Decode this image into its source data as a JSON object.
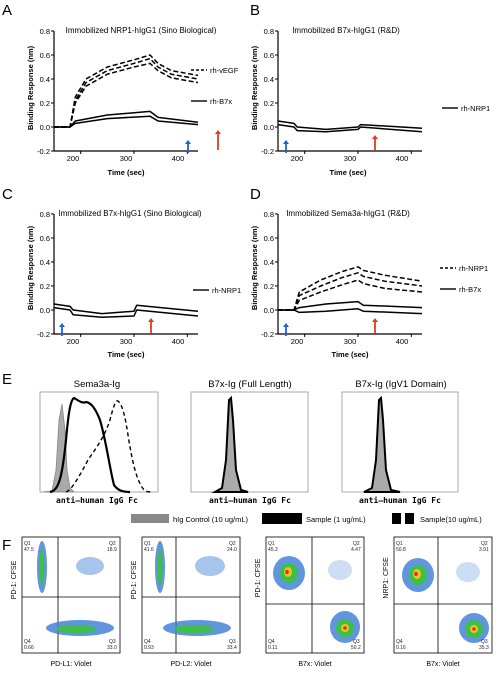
{
  "figure": {
    "panels": [
      {
        "letter": "A",
        "title": "Immobilized NRP1-hIgG1 (Sino Biological)",
        "ylabel": "Binding Response (nm)",
        "xlabel": "Time (sec)",
        "yticks": [
          "0.8",
          "0.6",
          "0.4",
          "0.2",
          "0.0",
          "-0.2"
        ],
        "xticks": [
          "200",
          "300",
          "400"
        ],
        "legend": [
          "rh-vEGF",
          "rh-B7x"
        ]
      },
      {
        "letter": "B",
        "title": "Immobilized B7x-hIgG1 (R&D)",
        "ylabel": "Binding Response (nm)",
        "xlabel": "Time (sec)",
        "yticks": [
          "0.8",
          "0.6",
          "0.4",
          "0.2",
          "0.0",
          "-0.2"
        ],
        "xticks": [
          "200",
          "300",
          "400"
        ],
        "legend": [
          "rh-NRP1"
        ]
      },
      {
        "letter": "C",
        "title": "Immobilized B7x-hIgG1 (Sino Biological)",
        "ylabel": "Binding Response (nm)",
        "xlabel": "Time (sec)",
        "yticks": [
          "0.8",
          "0.6",
          "0.4",
          "0.2",
          "0.0",
          "-0.2"
        ],
        "xticks": [
          "200",
          "300",
          "400"
        ],
        "legend": [
          "rh-NRP1"
        ]
      },
      {
        "letter": "D",
        "title": "Immobilized Sema3a-hIgG1 (R&D)",
        "ylabel": "Binding Response (nm)",
        "xlabel": "Time (sec)",
        "yticks": [
          "0.8",
          "0.6",
          "0.4",
          "0.2",
          "0.0",
          "-0.2"
        ],
        "xticks": [
          "200",
          "300",
          "400"
        ],
        "legend": [
          "rh-NRP1",
          "rh-B7x"
        ]
      }
    ],
    "panelE": {
      "letter": "E",
      "titles": [
        "Sema3a-Ig",
        "B7x-Ig (Full Length)",
        "B7x-Ig (IgV1 Domain)"
      ],
      "xlabel": "anti–human IgG Fc",
      "legend": [
        "hIg Control (10 ug/mL)",
        "Sample (1 ug/mL)",
        "Sample(10 ug/mL)"
      ]
    },
    "panelF": {
      "letter": "F",
      "plots": [
        {
          "ylabel": "PD-1: CFSE",
          "xlabel": "PD-L1: Violet",
          "q": [
            [
              "Q1",
              "47.5"
            ],
            [
              "Q2",
              "18.9"
            ],
            [
              "Q4",
              "0.66"
            ],
            [
              "Q3",
              "33.0"
            ]
          ]
        },
        {
          "ylabel": "PD-1: CFSE",
          "xlabel": "PD-L2: Violet",
          "q": [
            [
              "Q1",
              "41.6"
            ],
            [
              "Q2",
              "24.0"
            ],
            [
              "Q4",
              "0.93"
            ],
            [
              "Q3",
              "33.4"
            ]
          ]
        },
        {
          "ylabel": "PD-1: CFSE",
          "xlabel": "B7x: Violet",
          "q": [
            [
              "Q1",
              "45.2"
            ],
            [
              "Q2",
              "4.47"
            ],
            [
              "Q4",
              "0.11"
            ],
            [
              "Q3",
              "50.2"
            ]
          ]
        },
        {
          "ylabel": "NRP1: CFSE",
          "xlabel": "B7x: Violet",
          "q": [
            [
              "Q1",
              "50.8"
            ],
            [
              "Q2",
              "3.91"
            ],
            [
              "Q4",
              "0.16"
            ],
            [
              "Q3",
              "35.3"
            ]
          ]
        }
      ]
    }
  },
  "chart_data": [
    {
      "type": "line",
      "title": "Immobilized NRP1-hIgG1 (Sino Biological)",
      "xlabel": "Time (sec)",
      "ylabel": "Binding Response (nm)",
      "xlim": [
        150,
        420
      ],
      "ylim": [
        -0.2,
        0.8
      ],
      "series": [
        {
          "name": "rh-vEGF",
          "style": "dashed",
          "x": [
            150,
            180,
            190,
            210,
            250,
            300,
            330,
            345,
            370,
            420
          ],
          "y": [
            0.0,
            0.0,
            0.25,
            0.4,
            0.5,
            0.56,
            0.6,
            0.53,
            0.47,
            0.43
          ]
        },
        {
          "name": "rh-vEGF",
          "style": "dashed",
          "x": [
            150,
            180,
            190,
            210,
            250,
            300,
            330,
            345,
            370,
            420
          ],
          "y": [
            0.0,
            0.0,
            0.22,
            0.37,
            0.47,
            0.53,
            0.57,
            0.5,
            0.44,
            0.4
          ]
        },
        {
          "name": "rh-vEGF",
          "style": "dashed",
          "x": [
            150,
            180,
            190,
            210,
            250,
            300,
            330,
            345,
            370,
            420
          ],
          "y": [
            0.0,
            0.0,
            0.2,
            0.34,
            0.44,
            0.5,
            0.53,
            0.47,
            0.41,
            0.37
          ]
        },
        {
          "name": "rh-B7x",
          "style": "solid",
          "x": [
            150,
            180,
            190,
            250,
            330,
            345,
            420
          ],
          "y": [
            0.0,
            0.0,
            0.05,
            0.1,
            0.13,
            0.08,
            0.04
          ]
        },
        {
          "name": "rh-B7x",
          "style": "solid",
          "x": [
            150,
            180,
            190,
            250,
            330,
            345,
            420
          ],
          "y": [
            0.0,
            0.0,
            0.03,
            0.07,
            0.09,
            0.05,
            0.02
          ]
        }
      ]
    },
    {
      "type": "line",
      "title": "Immobilized B7x-hIgG1 (R&D)",
      "xlabel": "Time (sec)",
      "ylabel": "Binding Response (nm)",
      "xlim": [
        150,
        420
      ],
      "ylim": [
        -0.2,
        0.8
      ],
      "series": [
        {
          "name": "rh-NRP1",
          "style": "solid",
          "x": [
            150,
            180,
            186,
            240,
            300,
            305,
            420
          ],
          "y": [
            0.05,
            0.03,
            0.0,
            -0.02,
            0.0,
            0.02,
            -0.01
          ]
        },
        {
          "name": "rh-NRP1",
          "style": "solid",
          "x": [
            150,
            180,
            186,
            240,
            300,
            305,
            420
          ],
          "y": [
            0.02,
            0.0,
            -0.03,
            -0.04,
            -0.02,
            0.0,
            -0.04
          ]
        }
      ]
    },
    {
      "type": "line",
      "title": "Immobilized B7x-hIgG1 (Sino Biological)",
      "xlabel": "Time (sec)",
      "ylabel": "Binding Response (nm)",
      "xlim": [
        150,
        420
      ],
      "ylim": [
        -0.2,
        0.8
      ],
      "series": [
        {
          "name": "rh-NRP1",
          "style": "solid",
          "x": [
            150,
            180,
            186,
            240,
            300,
            305,
            420
          ],
          "y": [
            0.05,
            0.03,
            0.0,
            -0.03,
            -0.01,
            0.04,
            -0.01
          ]
        },
        {
          "name": "rh-NRP1",
          "style": "solid",
          "x": [
            150,
            180,
            186,
            240,
            300,
            305,
            420
          ],
          "y": [
            0.02,
            0.0,
            -0.04,
            -0.06,
            -0.05,
            0.0,
            -0.05
          ]
        }
      ]
    },
    {
      "type": "line",
      "title": "Immobilized Sema3a-hIgG1 (R&D)",
      "xlabel": "Time (sec)",
      "ylabel": "Binding Response (nm)",
      "xlim": [
        150,
        420
      ],
      "ylim": [
        -0.2,
        0.8
      ],
      "series": [
        {
          "name": "rh-NRP1",
          "style": "dashed",
          "x": [
            150,
            180,
            190,
            230,
            270,
            300,
            310,
            350,
            420
          ],
          "y": [
            0.0,
            0.0,
            0.15,
            0.25,
            0.32,
            0.36,
            0.33,
            0.29,
            0.24
          ]
        },
        {
          "name": "rh-NRP1",
          "style": "dashed",
          "x": [
            150,
            180,
            190,
            230,
            270,
            300,
            310,
            350,
            420
          ],
          "y": [
            0.0,
            0.0,
            0.12,
            0.2,
            0.27,
            0.31,
            0.28,
            0.24,
            0.2
          ]
        },
        {
          "name": "rh-NRP1",
          "style": "dashed",
          "x": [
            150,
            180,
            190,
            230,
            270,
            300,
            310,
            350,
            420
          ],
          "y": [
            0.0,
            0.0,
            0.08,
            0.15,
            0.21,
            0.25,
            0.22,
            0.18,
            0.15
          ]
        },
        {
          "name": "rh-B7x",
          "style": "solid",
          "x": [
            150,
            180,
            190,
            240,
            300,
            310,
            420
          ],
          "y": [
            0.0,
            0.0,
            0.02,
            0.05,
            0.07,
            0.04,
            0.02
          ]
        },
        {
          "name": "rh-B7x",
          "style": "solid",
          "x": [
            150,
            180,
            190,
            240,
            300,
            310,
            420
          ],
          "y": [
            0.0,
            0.0,
            -0.02,
            -0.01,
            0.01,
            -0.01,
            -0.03
          ]
        }
      ]
    }
  ]
}
